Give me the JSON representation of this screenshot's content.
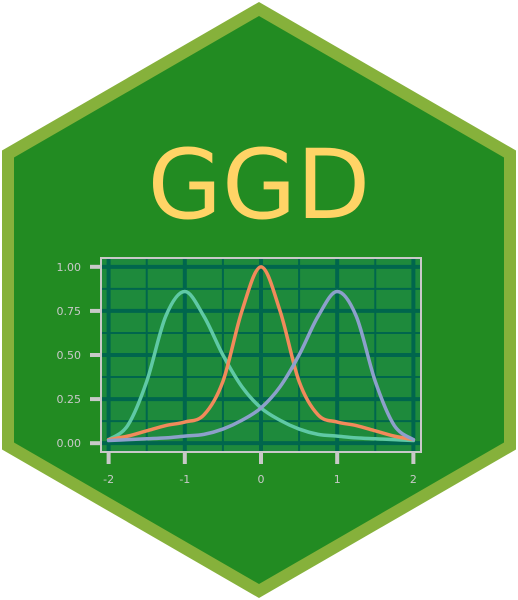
{
  "logo": {
    "title": "GGD",
    "colors": {
      "border": "#86B13B",
      "fill": "#228B22",
      "title": "#FFD466",
      "panel": "#1E8A3C",
      "grid": "#00664D",
      "axis": "#C9C9C9",
      "tick_text": "#C9C9C9"
    }
  },
  "chart_data": {
    "type": "line",
    "title": "",
    "xlabel": "",
    "ylabel": "",
    "xlim": [
      -2.1,
      2.1
    ],
    "ylim": [
      -0.05,
      1.05
    ],
    "x_ticks": [
      -2,
      -1,
      0,
      1,
      2
    ],
    "x_tick_labels": [
      "-2",
      "-1",
      "0",
      "1",
      "2"
    ],
    "y_ticks": [
      0,
      0.25,
      0.5,
      0.75,
      1
    ],
    "y_tick_labels": [
      "0.00",
      "0.25",
      "0.50",
      "0.75",
      "1.00"
    ],
    "grid": true,
    "legend": "none",
    "series": [
      {
        "color": "#5FC9A5",
        "x": [
          -2.0,
          -1.75,
          -1.5,
          -1.25,
          -1.0,
          -0.75,
          -0.5,
          -0.25,
          0.0,
          0.25,
          0.5,
          0.75,
          1.0,
          1.25,
          1.5,
          1.75,
          2.0
        ],
        "y": [
          0.02,
          0.1,
          0.35,
          0.72,
          0.86,
          0.72,
          0.5,
          0.32,
          0.2,
          0.13,
          0.08,
          0.05,
          0.04,
          0.03,
          0.025,
          0.02,
          0.015
        ]
      },
      {
        "color": "#F28A5B",
        "x": [
          -2.0,
          -1.75,
          -1.5,
          -1.25,
          -1.0,
          -0.75,
          -0.5,
          -0.25,
          0.0,
          0.25,
          0.5,
          0.75,
          1.0,
          1.25,
          1.5,
          1.75,
          2.0
        ],
        "y": [
          0.02,
          0.04,
          0.07,
          0.1,
          0.12,
          0.16,
          0.35,
          0.75,
          1.0,
          0.75,
          0.35,
          0.16,
          0.12,
          0.1,
          0.07,
          0.04,
          0.02
        ]
      },
      {
        "color": "#8DA0CB",
        "x": [
          -2.0,
          -1.75,
          -1.5,
          -1.25,
          -1.0,
          -0.75,
          -0.5,
          -0.25,
          0.0,
          0.25,
          0.5,
          0.75,
          1.0,
          1.25,
          1.5,
          1.75,
          2.0
        ],
        "y": [
          0.015,
          0.02,
          0.025,
          0.03,
          0.04,
          0.05,
          0.08,
          0.13,
          0.2,
          0.32,
          0.5,
          0.72,
          0.86,
          0.72,
          0.35,
          0.1,
          0.02
        ]
      }
    ]
  }
}
